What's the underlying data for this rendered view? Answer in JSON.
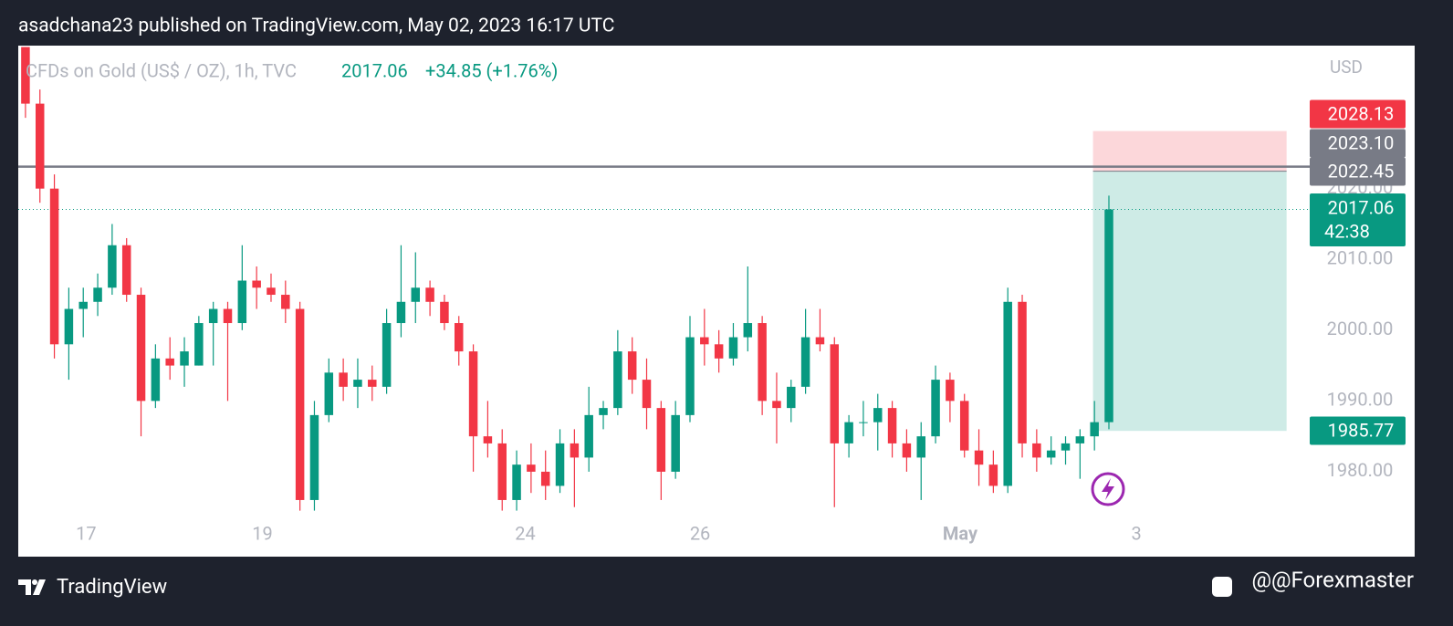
{
  "header": {
    "published": "asadchana23 published on TradingView.com, May 02, 2023 16:17 UTC"
  },
  "footer": {
    "brand": "TradingView",
    "author": "@@Forexmaster"
  },
  "chart_data": {
    "type": "candlestick",
    "symbol": "CFDs on Gold (US$ / OZ), 1h, TVC",
    "last": "2017.06",
    "change": "+34.85 (+1.76%)",
    "currency": "USD",
    "up_color": "#089981",
    "down_color": "#f23645",
    "x": [
      0,
      1,
      2,
      3,
      4,
      5,
      6,
      7,
      8,
      9,
      10,
      11,
      12,
      13,
      14,
      15,
      16,
      17,
      18,
      19,
      20,
      21,
      22,
      23,
      24,
      25,
      26,
      27,
      28,
      29,
      30,
      31,
      32,
      33,
      34,
      35,
      36,
      37,
      38,
      39,
      40,
      41,
      42,
      43,
      44,
      45,
      46,
      47,
      48,
      49,
      50,
      51,
      52,
      53,
      54,
      55,
      56,
      57,
      58,
      59,
      60,
      61,
      62,
      63,
      64,
      65,
      66,
      67,
      68,
      69,
      70,
      71,
      72,
      73,
      74,
      75
    ],
    "open": [
      2040,
      2032,
      2020,
      1998,
      2003,
      2004,
      2006,
      2012,
      2005,
      1990,
      1996,
      1995,
      1995,
      2001,
      2003,
      2001,
      2007,
      2006,
      2005,
      2003,
      1976,
      1988,
      1994,
      1992,
      1993,
      1992,
      2001,
      2004,
      2006,
      2004,
      2001,
      1997,
      1985,
      1984,
      1976,
      1981,
      1980,
      1978,
      1984,
      1982,
      1988,
      1989,
      1997,
      1993,
      1989,
      1980,
      1988,
      1999,
      1998,
      1996,
      1999,
      2001,
      1990,
      1989,
      1992,
      1999,
      1998,
      1984,
      1987,
      1987,
      1989,
      1984,
      1982,
      1985,
      1993,
      1990,
      1983,
      1981,
      1978,
      2004,
      1984,
      1982,
      1983,
      1984,
      1985,
      1987
    ],
    "high": [
      2040,
      2034,
      2022,
      2006,
      2006,
      2008,
      2015,
      2013,
      2006,
      1998,
      1999,
      1999,
      2002,
      2004,
      2004,
      2012,
      2009,
      2008,
      2007,
      2004,
      1990,
      1996,
      1996,
      1996,
      1995,
      2003,
      2012,
      2011,
      2007,
      2005,
      2002,
      1998,
      1990,
      1986,
      1983,
      1984,
      1983,
      1986,
      1986,
      1992,
      1990,
      2000,
      1999,
      1996,
      1990,
      1990,
      2002,
      2003,
      2000,
      2001,
      2009,
      2002,
      1994,
      1993,
      2003,
      2003,
      1999,
      1988,
      1990,
      1991,
      1990,
      1986,
      1987,
      1995,
      1994,
      1991,
      1986,
      1983,
      2006,
      2005,
      1986,
      1985,
      1985,
      1986,
      1990,
      2019
    ],
    "low": [
      2030,
      2018,
      1996,
      1993,
      1999,
      2002,
      2005,
      2004,
      1985,
      1989,
      1993,
      1992,
      1995,
      1995,
      1990,
      2000,
      2003,
      2004,
      2001,
      1974.5,
      1974.5,
      1987,
      1990,
      1989,
      1990,
      1991,
      1999,
      2001,
      2002,
      2000,
      1995,
      1980,
      1982,
      1974.5,
      1974.5,
      1977,
      1976,
      1977,
      1975,
      1980,
      1986,
      1988,
      1991,
      1986,
      1976,
      1979,
      1987,
      1995,
      1994,
      1995,
      1997,
      1988,
      1984,
      1987,
      1991,
      1997,
      1975,
      1982,
      1985,
      1983,
      1982,
      1980,
      1976,
      1984,
      1987,
      1982,
      1978,
      1977,
      1977,
      1982,
      1980,
      1981,
      1981,
      1979,
      1983,
      1986
    ],
    "close": [
      2032,
      2020,
      1998,
      2003,
      2004,
      2006,
      2012,
      2005,
      1990,
      1996,
      1995,
      1997,
      2001,
      2003,
      2001,
      2007,
      2006,
      2005,
      2003,
      1976,
      1988,
      1994,
      1992,
      1993,
      1992,
      2001,
      2004,
      2006,
      2004,
      2001,
      1997,
      1985,
      1984,
      1976,
      1981,
      1980,
      1978,
      1984,
      1982,
      1988,
      1989,
      1997,
      1993,
      1989,
      1980,
      1988,
      1999,
      1998,
      1996,
      1999,
      2001,
      1990,
      1989,
      1992,
      1999,
      1998,
      1984,
      1987,
      1987,
      1989,
      1984,
      1982,
      1985,
      1993,
      1990,
      1983,
      1981,
      1978,
      2004,
      1984,
      1982,
      1983,
      1984,
      1985,
      1987,
      2017.06
    ],
    "xlim": [
      -0.5,
      88.9
    ],
    "xticks": [
      {
        "value": 4.2,
        "label": "17"
      },
      {
        "value": 16.4,
        "label": "19"
      },
      {
        "value": 34.6,
        "label": "24"
      },
      {
        "value": 46.7,
        "label": "26"
      },
      {
        "value": 64.7,
        "label": "May"
      },
      {
        "value": 76.9,
        "label": "3"
      }
    ],
    "ylim": [
      1968,
      2040.2
    ],
    "yticks": [
      {
        "value": 2020,
        "label": "2020.00"
      },
      {
        "value": 2010,
        "label": "2010.00"
      },
      {
        "value": 2000,
        "label": "2000.00"
      },
      {
        "value": 1990,
        "label": "1990.00"
      },
      {
        "value": 1980,
        "label": "1980.00"
      }
    ],
    "hline": {
      "value": 2023.1,
      "color": "#787b86"
    },
    "position": {
      "start": 73.9,
      "end": 87.3,
      "stop": 2028.13,
      "entry": 2022.45,
      "target": 1985.77
    },
    "price_tags": [
      {
        "value": 2028.13,
        "label": "2028.13",
        "color": "#f23645"
      },
      {
        "value": 2023.1,
        "label": "2023.10",
        "color": "#787b86"
      },
      {
        "value": 2022.45,
        "label": "2022.45",
        "color": "#787b86"
      },
      {
        "value": 2017.06,
        "label": "2017.06",
        "color": "#089981",
        "countdown": "42:38"
      },
      {
        "value": 1985.77,
        "label": "1985.77",
        "color": "#089981"
      }
    ]
  }
}
